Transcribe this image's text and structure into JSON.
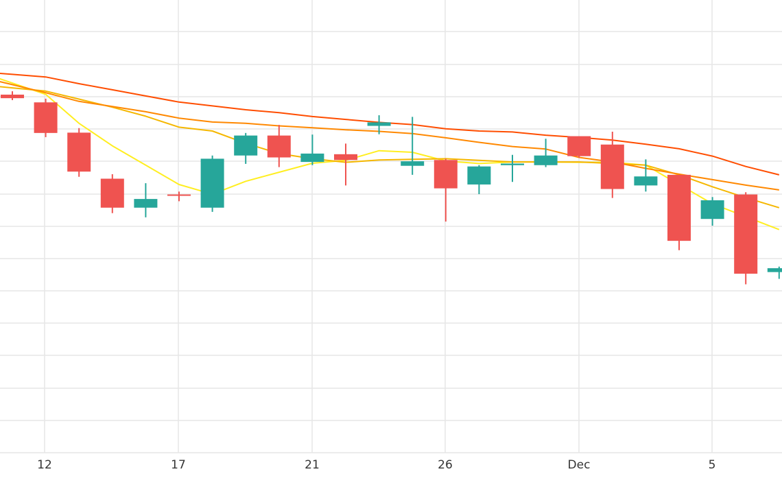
{
  "chart_data": {
    "type": "candlestick",
    "x_ticks": [
      "12",
      "17",
      "21",
      "26",
      "Dec",
      "5"
    ],
    "colors": {
      "up": "#26a69a",
      "down": "#ef5350",
      "grid": "#e6e6e6",
      "axis_text": "#333333"
    },
    "grid": true,
    "candles": [
      {
        "open": 4090,
        "high": 4195,
        "low": 3920,
        "close": 3980,
        "dir": "down"
      },
      {
        "open": 3850,
        "high": 3965,
        "low": 2770,
        "close": 2900,
        "dir": "down"
      },
      {
        "open": 2910,
        "high": 3050,
        "low": 1540,
        "close": 1700,
        "dir": "down"
      },
      {
        "open": 1480,
        "high": 1620,
        "low": 410,
        "close": 580,
        "dir": "down"
      },
      {
        "open": 580,
        "high": 1340,
        "low": 280,
        "close": 850,
        "dir": "up"
      },
      {
        "open": 990,
        "high": 1080,
        "low": 780,
        "close": 960,
        "dir": "down"
      },
      {
        "open": 580,
        "high": 2200,
        "low": 450,
        "close": 2100,
        "dir": "up"
      },
      {
        "open": 2200,
        "high": 2900,
        "low": 1940,
        "close": 2820,
        "dir": "up"
      },
      {
        "open": 2820,
        "high": 3150,
        "low": 1840,
        "close": 2140,
        "dir": "down"
      },
      {
        "open": 2000,
        "high": 2850,
        "low": 1900,
        "close": 2260,
        "dir": "up"
      },
      {
        "open": 2240,
        "high": 2570,
        "low": 1270,
        "close": 2060,
        "dir": "down"
      },
      {
        "open": 3120,
        "high": 3450,
        "low": 2860,
        "close": 3230,
        "dir": "up"
      },
      {
        "open": 1880,
        "high": 3400,
        "low": 1600,
        "close": 2020,
        "dir": "up"
      },
      {
        "open": 2060,
        "high": 2100,
        "low": 150,
        "close": 1180,
        "dir": "down"
      },
      {
        "open": 1300,
        "high": 1900,
        "low": 1000,
        "close": 1860,
        "dir": "up"
      },
      {
        "open": 1900,
        "high": 2220,
        "low": 1380,
        "close": 1950,
        "dir": "up"
      },
      {
        "open": 1900,
        "high": 2720,
        "low": 1840,
        "close": 2200,
        "dir": "up"
      },
      {
        "open": 2800,
        "high": 2800,
        "low": 2130,
        "close": 2180,
        "dir": "down"
      },
      {
        "open": 2540,
        "high": 2940,
        "low": 880,
        "close": 1160,
        "dir": "down"
      },
      {
        "open": 1270,
        "high": 2080,
        "low": 1080,
        "close": 1550,
        "dir": "up"
      },
      {
        "open": 1600,
        "high": 1600,
        "low": -740,
        "close": -450,
        "dir": "down"
      },
      {
        "open": 230,
        "high": 910,
        "low": 20,
        "close": 810,
        "dir": "up"
      },
      {
        "open": 990,
        "high": 1060,
        "low": -1800,
        "close": -1470,
        "dir": "down"
      },
      {
        "open": -1420,
        "high": -1250,
        "low": -1630,
        "close": -1300,
        "dir": "up"
      }
    ],
    "moving_averages": [
      {
        "color": "#ffee20",
        "values": [
          4450,
          4100,
          3200,
          2500,
          1900,
          1300,
          1000,
          1400,
          1680,
          1960,
          2050,
          2350,
          2300,
          2030,
          1950,
          2000,
          2000,
          1990,
          1990,
          1900,
          1300,
          700,
          300,
          -100
        ]
      },
      {
        "color": "#f5b700",
        "values": [
          4300,
          4200,
          3950,
          3700,
          3420,
          3080,
          2960,
          2580,
          2260,
          2100,
          1990,
          2060,
          2080,
          2100,
          2050,
          2000,
          2000,
          2000,
          1950,
          1900,
          1600,
          1230,
          890,
          580
        ]
      },
      {
        "color": "#ff8800",
        "values": [
          4400,
          4150,
          3880,
          3720,
          3560,
          3360,
          3240,
          3200,
          3120,
          3060,
          3000,
          2950,
          2880,
          2750,
          2610,
          2480,
          2400,
          2140,
          2000,
          1800,
          1620,
          1450,
          1280,
          1130
        ]
      },
      {
        "color": "#ff4d00",
        "values": [
          4720,
          4640,
          4430,
          4240,
          4050,
          3860,
          3740,
          3620,
          3530,
          3410,
          3320,
          3230,
          3160,
          3030,
          2960,
          2930,
          2830,
          2760,
          2680,
          2550,
          2410,
          2180,
          1860,
          1600
        ]
      }
    ]
  }
}
